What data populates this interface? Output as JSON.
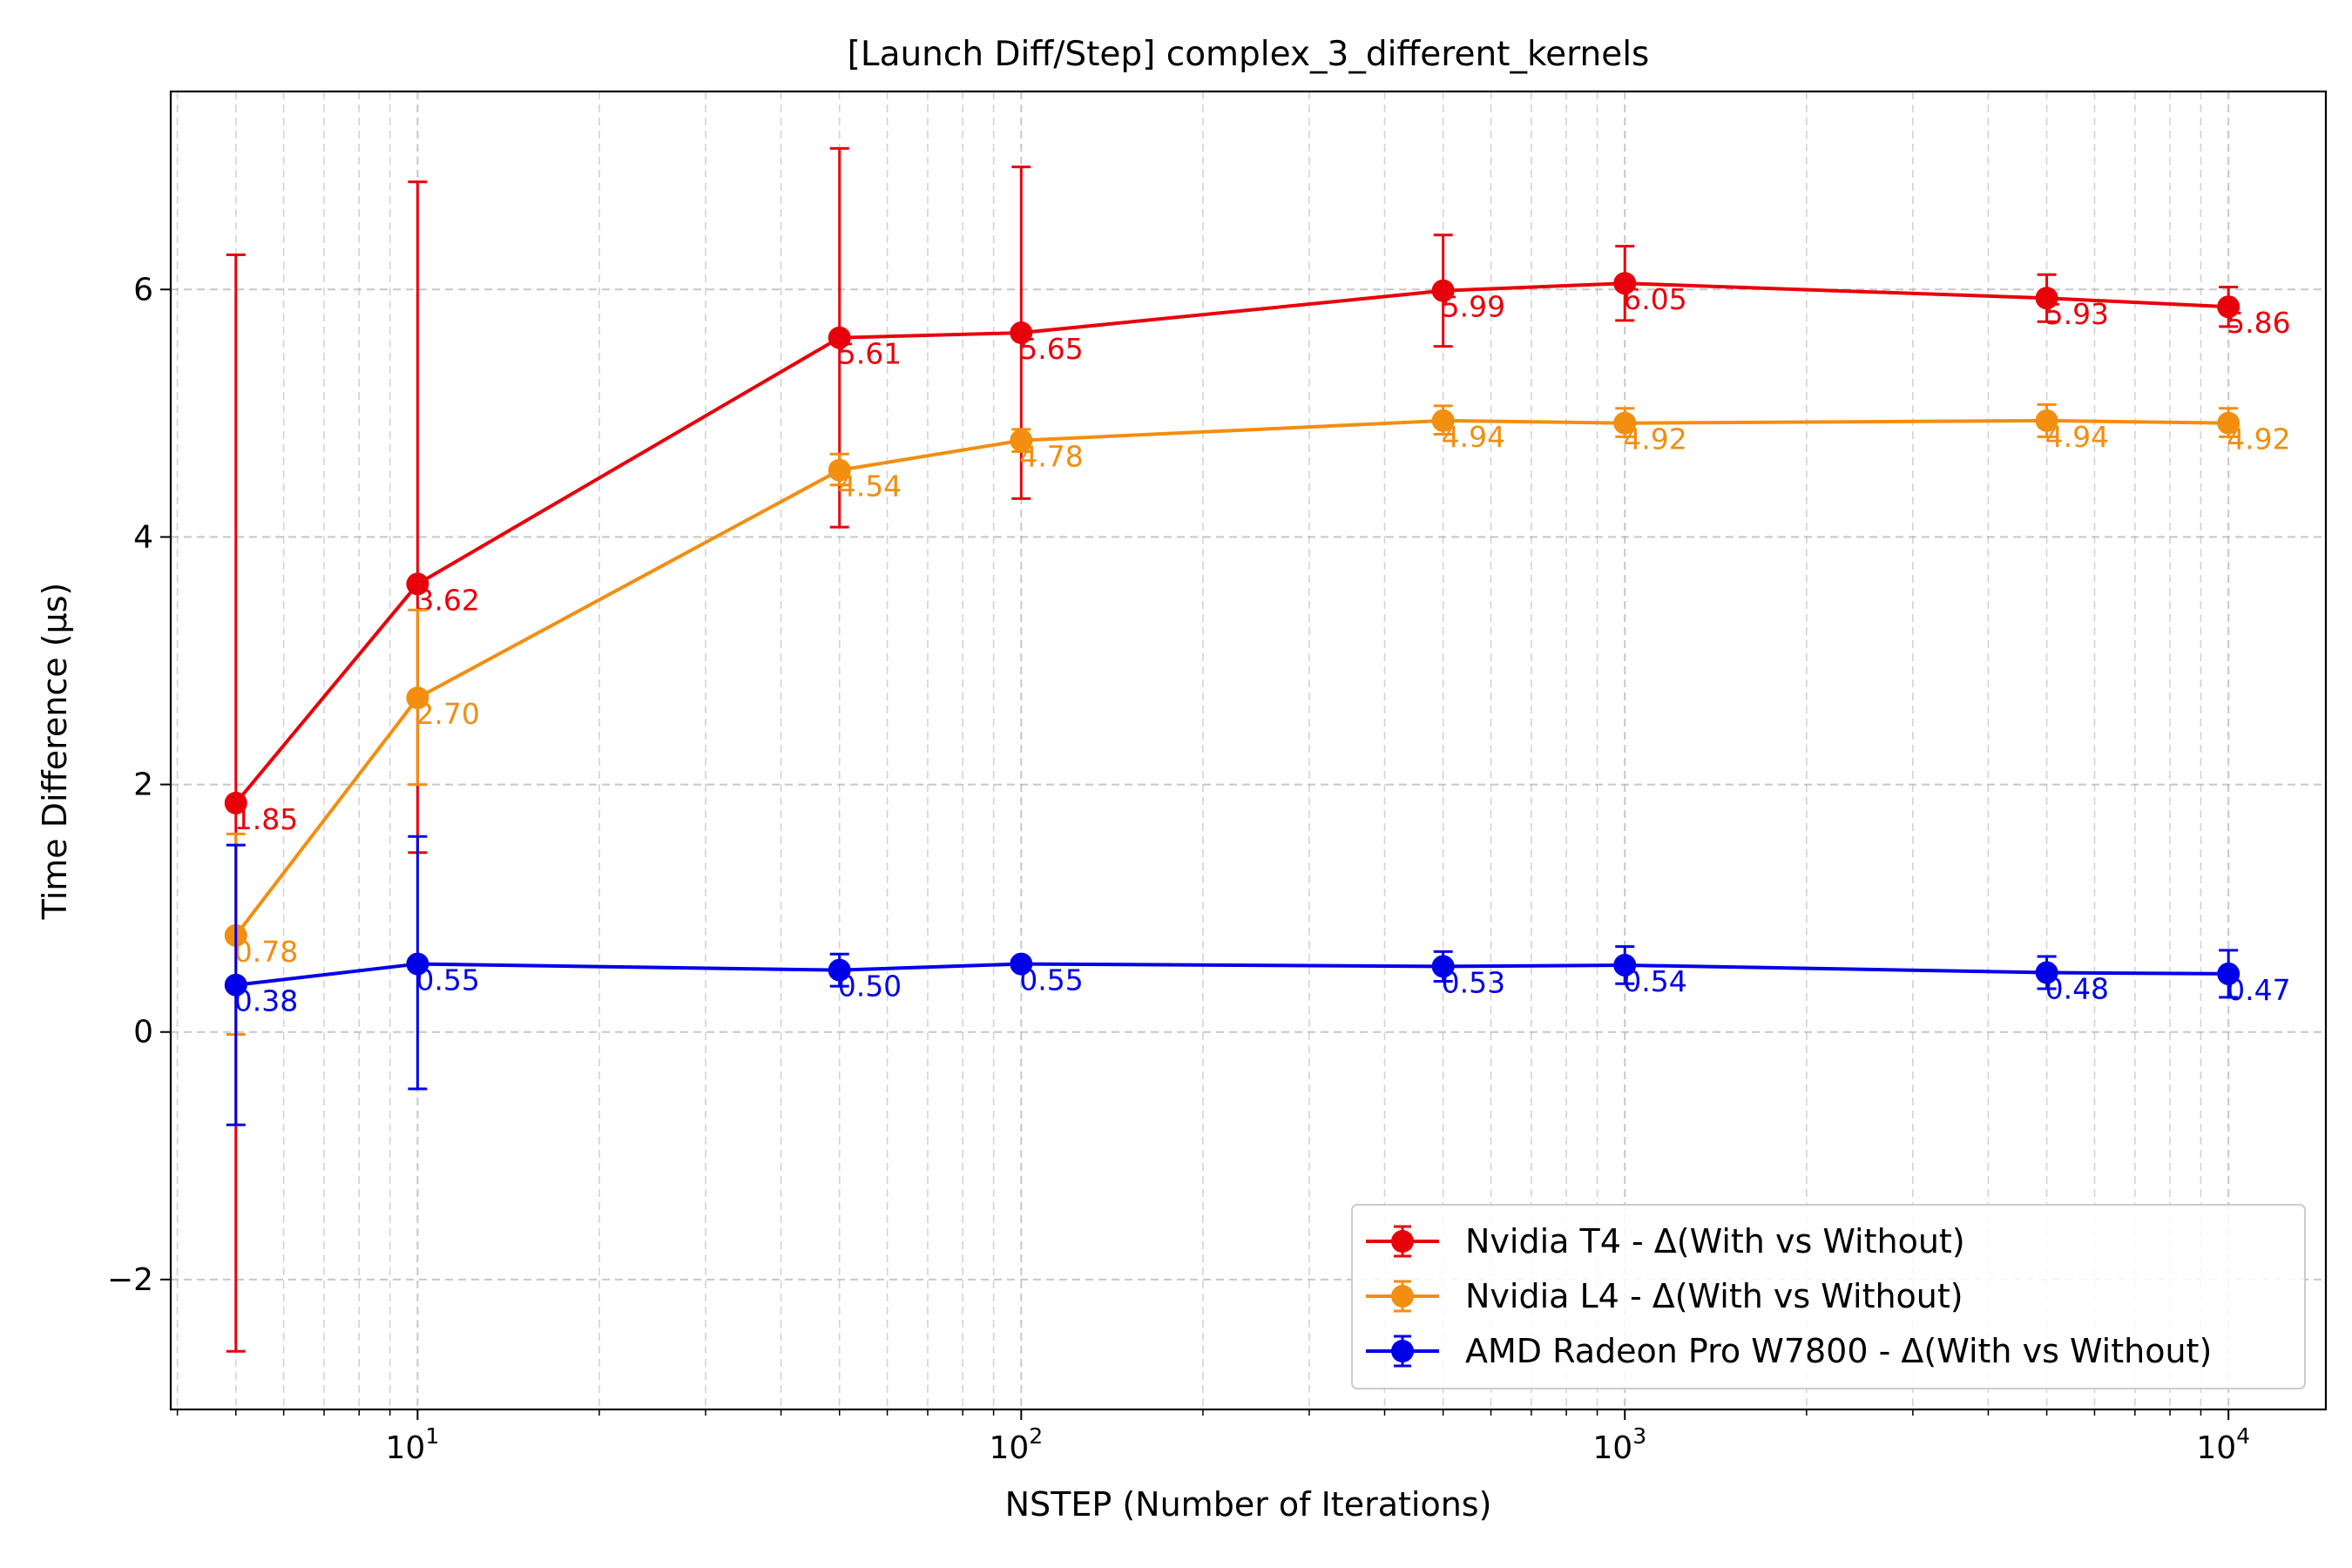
{
  "chart_data": {
    "type": "line",
    "title": "[Launch Diff/Step] complex_3_different_kernels",
    "xlabel": "NSTEP (Number of Iterations)",
    "ylabel": "Time Difference (µs)",
    "x_scale": "log",
    "xlim": [
      3.9,
      14500
    ],
    "ylim": [
      -3.05,
      7.6
    ],
    "x": [
      5,
      10,
      50,
      100,
      500,
      1000,
      5000,
      10000
    ],
    "x_ticks": [
      {
        "value": 10,
        "base": "10",
        "exp": "1"
      },
      {
        "value": 100,
        "base": "10",
        "exp": "2"
      },
      {
        "value": 1000,
        "base": "10",
        "exp": "3"
      },
      {
        "value": 10000,
        "base": "10",
        "exp": "4"
      }
    ],
    "y_ticks": [
      {
        "value": -2,
        "label": "−2"
      },
      {
        "value": 0,
        "label": "0"
      },
      {
        "value": 2,
        "label": "2"
      },
      {
        "value": 4,
        "label": "4"
      },
      {
        "value": 6,
        "label": "6"
      }
    ],
    "grid": true,
    "legend_position": "lower right",
    "series": [
      {
        "name": "Nvidia T4 - Δ(With vs Without)",
        "color": "#e8000b",
        "values": [
          1.85,
          3.62,
          5.61,
          5.65,
          5.99,
          6.05,
          5.93,
          5.86
        ],
        "err_low": [
          -2.58,
          1.45,
          4.08,
          4.31,
          5.54,
          5.75,
          5.74,
          5.7
        ],
        "err_high": [
          6.28,
          6.87,
          7.14,
          6.99,
          6.44,
          6.35,
          6.12,
          6.02
        ],
        "labels": [
          "1.85",
          "3.62",
          "5.61",
          "5.65",
          "5.99",
          "6.05",
          "5.93",
          "5.86"
        ]
      },
      {
        "name": "Nvidia L4 - Δ(With vs Without)",
        "color": "#f28e10",
        "values": [
          0.78,
          2.7,
          4.54,
          4.78,
          4.94,
          4.92,
          4.94,
          4.92
        ],
        "err_low": [
          -0.02,
          2.0,
          4.42,
          4.69,
          4.83,
          4.81,
          4.81,
          4.81
        ],
        "err_high": [
          1.6,
          3.41,
          4.67,
          4.87,
          5.06,
          5.04,
          5.07,
          5.04
        ],
        "labels": [
          "0.78",
          "2.70",
          "4.54",
          "4.78",
          "4.94",
          "4.92",
          "4.94",
          "4.92"
        ]
      },
      {
        "name": "AMD Radeon Pro W7800 - Δ(With vs Without)",
        "color": "#0000e8",
        "values": [
          0.38,
          0.55,
          0.5,
          0.55,
          0.53,
          0.54,
          0.48,
          0.47
        ],
        "err_low": [
          -0.75,
          -0.46,
          0.37,
          0.53,
          0.41,
          0.39,
          0.35,
          0.28
        ],
        "err_high": [
          1.51,
          1.58,
          0.63,
          0.57,
          0.65,
          0.69,
          0.61,
          0.66
        ],
        "labels": [
          "0.38",
          "0.55",
          "0.50",
          "0.55",
          "0.53",
          "0.54",
          "0.48",
          "0.47"
        ]
      }
    ]
  }
}
